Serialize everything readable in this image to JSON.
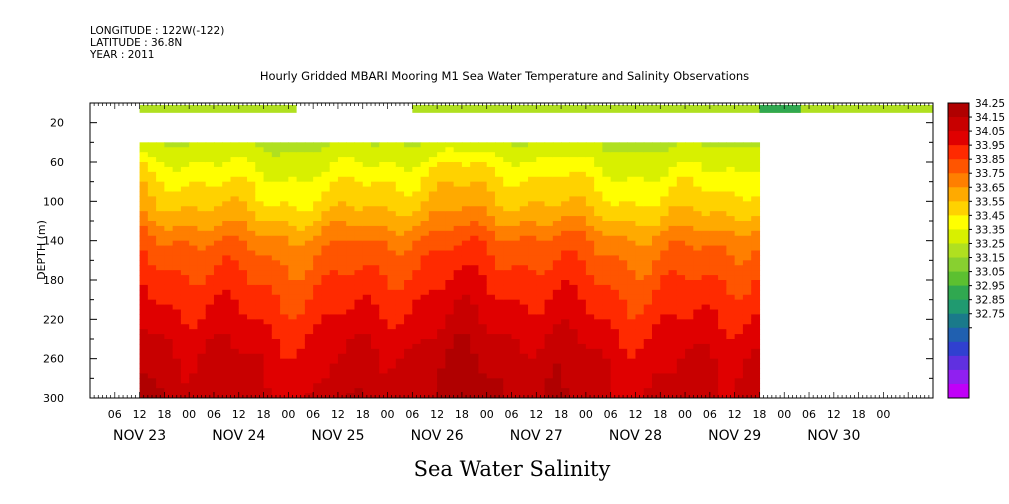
{
  "header": {
    "longitude": "LONGITUDE : 122W(-122)",
    "latitude": "LATITUDE : 36.8N",
    "year": "YEAR : 2011"
  },
  "chart_data": {
    "type": "heatmap",
    "title": "Hourly Gridded MBARI Mooring M1 Sea Water Temperature and Salinity Observations",
    "xlabel": "Sea Water Salinity",
    "ylabel": "DEPTH (m)",
    "x_range_hours": [
      0,
      204
    ],
    "x_axis_start": "NOV 23 00",
    "ylim": [
      300,
      0
    ],
    "y_ticks": [
      20,
      60,
      100,
      140,
      180,
      220,
      260,
      300
    ],
    "x_hour_labels": [
      "06",
      "12",
      "18",
      "00",
      "06",
      "12",
      "18",
      "00",
      "06",
      "12",
      "18",
      "00",
      "06",
      "12",
      "18",
      "00",
      "06",
      "12",
      "18",
      "00",
      "06",
      "12",
      "18",
      "00",
      "06",
      "12",
      "18",
      "00",
      "06",
      "12",
      "18",
      "00"
    ],
    "day_labels": [
      "NOV 23",
      "NOV 24",
      "NOV 25",
      "NOV 26",
      "NOV 27",
      "NOV 28",
      "NOV 29",
      "NOV 30"
    ],
    "colorbar": {
      "levels": [
        "34.25",
        "34.15",
        "34.05",
        "33.95",
        "33.85",
        "33.75",
        "33.65",
        "33.55",
        "33.45",
        "33.35",
        "33.25",
        "33.15",
        "33.05",
        "32.95",
        "32.85",
        "32.75"
      ],
      "colors": [
        "#b00000",
        "#c80000",
        "#e00000",
        "#ff2a00",
        "#ff5500",
        "#ff7f00",
        "#ffaa00",
        "#ffd200",
        "#ffff00",
        "#d8f000",
        "#b0e020",
        "#88d030",
        "#5cc030",
        "#30a850",
        "#209a70",
        "#1a7a8a",
        "#2060b0",
        "#3040d0",
        "#6030e0",
        "#9020f0",
        "#c000f8"
      ]
    },
    "surface_bins": [
      {
        "start_hour": 12,
        "end_hour": 50,
        "salinity": 33.25
      },
      {
        "start_hour": 78,
        "end_hour": 204,
        "salinity": 33.25
      },
      {
        "start_hour": 162,
        "end_hour": 172,
        "salinity": 32.95
      }
    ],
    "profile_coverage": {
      "start_hour": 12,
      "end_hour": 162,
      "top_depth": 40,
      "bottom_depth": 300
    },
    "mean_profile": [
      {
        "depth": 40,
        "salinity": 33.35
      },
      {
        "depth": 60,
        "salinity": 33.45
      },
      {
        "depth": 80,
        "salinity": 33.55
      },
      {
        "depth": 100,
        "salinity": 33.62
      },
      {
        "depth": 120,
        "salinity": 33.72
      },
      {
        "depth": 140,
        "salinity": 33.85
      },
      {
        "depth": 160,
        "salinity": 33.92
      },
      {
        "depth": 180,
        "salinity": 33.98
      },
      {
        "depth": 200,
        "salinity": 34.03
      },
      {
        "depth": 220,
        "salinity": 34.08
      },
      {
        "depth": 240,
        "salinity": 34.13
      },
      {
        "depth": 260,
        "salinity": 34.18
      },
      {
        "depth": 300,
        "salinity": 34.22
      }
    ]
  }
}
